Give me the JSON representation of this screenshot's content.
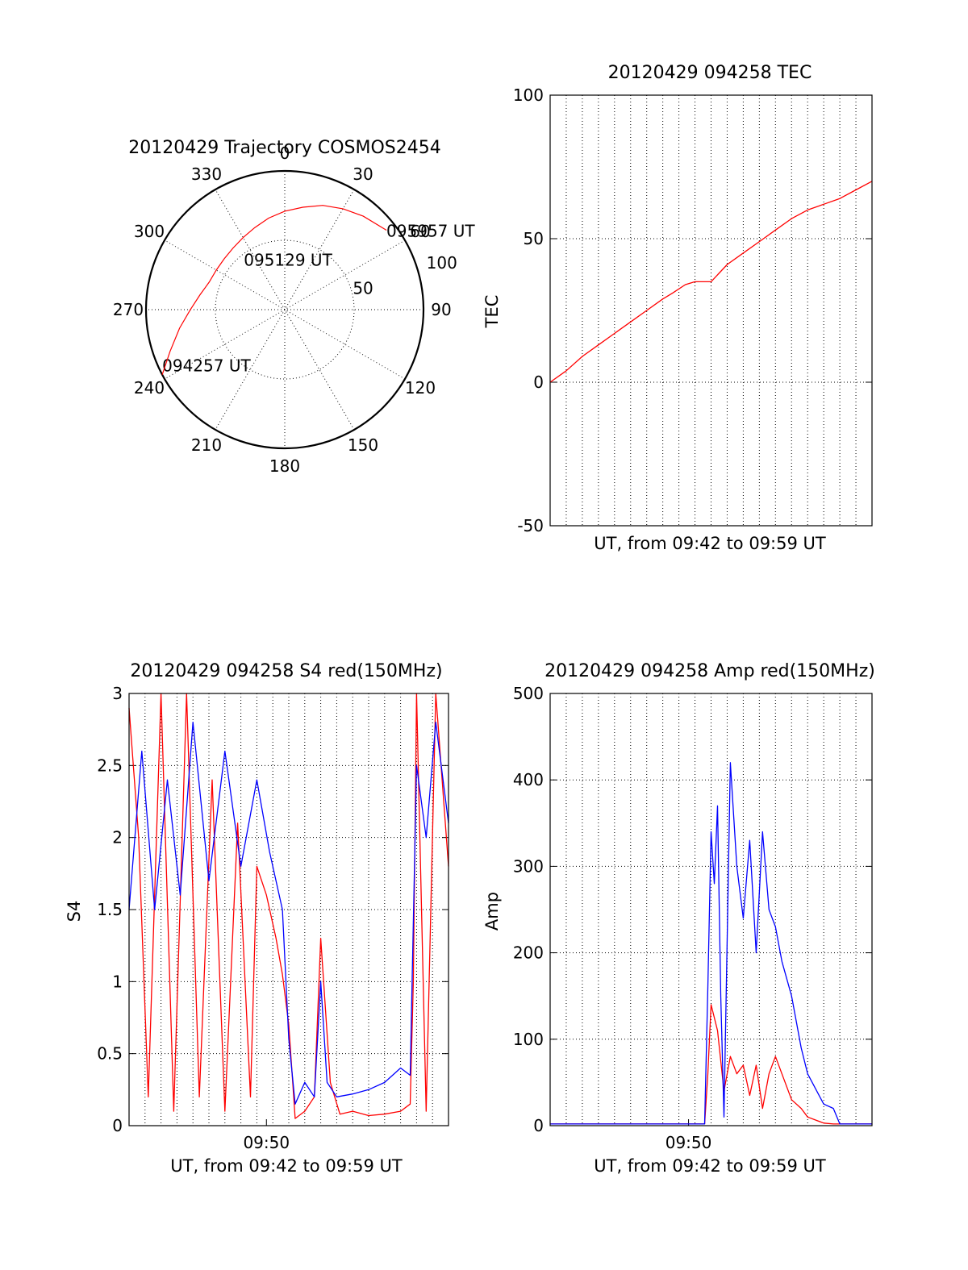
{
  "colors": {
    "red": "#ff0000",
    "blue": "#0000ff",
    "axis": "#000000"
  },
  "chart_data": [
    {
      "type": "scatter",
      "kind": "polar",
      "title": "20120429 Trajectory COSMOS2454",
      "azimuth_labels": [
        "0",
        "30",
        "60",
        "90",
        "120",
        "150",
        "180",
        "210",
        "240",
        "270",
        "300",
        "330"
      ],
      "radial_labels": [
        "50",
        "100"
      ],
      "rlim": [
        0,
        100
      ],
      "rings": [
        50,
        100
      ],
      "annotations": [
        {
          "text": "095957 UT",
          "az": 52,
          "zenith": 93
        },
        {
          "text": "095129 UT",
          "az": 0,
          "zenith": 5
        },
        {
          "text": "094257 UT",
          "az": 242,
          "zenith": 100
        }
      ],
      "series": [
        {
          "color": "#ff0000",
          "az": [
            242,
            250,
            260,
            270,
            280,
            290,
            300,
            310,
            320,
            330,
            340,
            350,
            0,
            10,
            20,
            30,
            40,
            52
          ],
          "zenith": [
            100,
            88,
            77,
            68,
            62,
            58,
            57,
            57,
            58,
            60,
            63,
            67,
            71,
            75,
            80,
            84,
            88,
            93
          ]
        }
      ]
    },
    {
      "type": "line",
      "title": "20120429 094258 TEC",
      "xlabel": "UT, from 09:42 to 09:59 UT",
      "ylabel": "TEC",
      "ylim": [
        -50,
        100
      ],
      "yticks": [
        "-50",
        "0",
        "50",
        "100"
      ],
      "xlim": [
        0,
        1
      ],
      "x_gridlines": 20,
      "grid": true,
      "series": [
        {
          "color": "#ff0000",
          "x": [
            0,
            0.05,
            0.1,
            0.15,
            0.2,
            0.25,
            0.3,
            0.35,
            0.38,
            0.42,
            0.45,
            0.5,
            0.55,
            0.6,
            0.65,
            0.7,
            0.75,
            0.8,
            0.85,
            0.9,
            0.95,
            1.0
          ],
          "y": [
            0,
            4,
            9,
            13,
            17,
            21,
            25,
            29,
            31,
            34,
            35,
            35,
            41,
            45,
            49,
            53,
            57,
            60,
            62,
            64,
            67,
            70
          ]
        }
      ]
    },
    {
      "type": "line",
      "title": "20120429 094258 S4 red(150MHz)",
      "xlabel": "UT, from 09:42 to 09:59 UT",
      "ylabel": "S4",
      "ylim": [
        0,
        3
      ],
      "yticks": [
        "0",
        "0.5",
        "1",
        "1.5",
        "2",
        "2.5",
        "3"
      ],
      "xlim": [
        0,
        1
      ],
      "xticks": [
        {
          "value": 0.43,
          "label": "09:50"
        }
      ],
      "x_gridlines": 20,
      "grid": true,
      "series": [
        {
          "color": "#ff0000",
          "x": [
            0,
            0.03,
            0.06,
            0.1,
            0.14,
            0.18,
            0.22,
            0.26,
            0.3,
            0.34,
            0.38,
            0.4,
            0.43,
            0.46,
            0.48,
            0.5,
            0.52,
            0.55,
            0.58,
            0.6,
            0.63,
            0.66,
            0.7,
            0.75,
            0.8,
            0.85,
            0.88,
            0.89,
            0.9,
            0.93,
            0.96,
            1.0
          ],
          "y": [
            2.9,
            2.0,
            0.2,
            3.0,
            0.1,
            3.0,
            0.2,
            2.4,
            0.1,
            2.1,
            0.2,
            1.8,
            1.6,
            1.3,
            1.05,
            0.7,
            0.05,
            0.1,
            0.2,
            1.3,
            0.3,
            0.08,
            0.1,
            0.07,
            0.08,
            0.1,
            0.15,
            1.0,
            3.0,
            0.1,
            3.0,
            1.8
          ]
        },
        {
          "color": "#0000ff",
          "x": [
            0,
            0.04,
            0.08,
            0.12,
            0.16,
            0.2,
            0.25,
            0.3,
            0.35,
            0.4,
            0.44,
            0.48,
            0.5,
            0.52,
            0.55,
            0.58,
            0.6,
            0.62,
            0.65,
            0.7,
            0.75,
            0.8,
            0.85,
            0.88,
            0.9,
            0.93,
            0.96,
            1.0
          ],
          "y": [
            1.5,
            2.6,
            1.5,
            2.4,
            1.6,
            2.8,
            1.7,
            2.6,
            1.8,
            2.4,
            1.9,
            1.5,
            0.6,
            0.15,
            0.3,
            0.2,
            1.0,
            0.3,
            0.2,
            0.22,
            0.25,
            0.3,
            0.4,
            0.35,
            2.5,
            2.0,
            2.8,
            2.1
          ]
        }
      ]
    },
    {
      "type": "line",
      "title": "20120429 094258 Amp red(150MHz)",
      "xlabel": "UT, from 09:42 to 09:59 UT",
      "ylabel": "Amp",
      "ylim": [
        0,
        500
      ],
      "yticks": [
        "0",
        "100",
        "200",
        "300",
        "400",
        "500"
      ],
      "xlim": [
        0,
        1
      ],
      "xticks": [
        {
          "value": 0.43,
          "label": "09:50"
        }
      ],
      "x_gridlines": 20,
      "grid": true,
      "series": [
        {
          "color": "#ff0000",
          "x": [
            0,
            0.48,
            0.49,
            0.5,
            0.52,
            0.54,
            0.56,
            0.58,
            0.6,
            0.62,
            0.64,
            0.66,
            0.68,
            0.7,
            0.72,
            0.75,
            0.78,
            0.8,
            0.85,
            0.88,
            0.9,
            1.0
          ],
          "y": [
            2,
            2,
            60,
            140,
            110,
            40,
            80,
            60,
            70,
            35,
            70,
            20,
            60,
            80,
            60,
            30,
            20,
            10,
            3,
            2,
            2,
            2
          ]
        },
        {
          "color": "#0000ff",
          "x": [
            0,
            0.48,
            0.49,
            0.5,
            0.51,
            0.52,
            0.53,
            0.54,
            0.56,
            0.58,
            0.6,
            0.62,
            0.64,
            0.66,
            0.68,
            0.7,
            0.72,
            0.75,
            0.78,
            0.8,
            0.85,
            0.88,
            0.9,
            1.0
          ],
          "y": [
            2,
            2,
            160,
            340,
            280,
            370,
            150,
            10,
            420,
            300,
            240,
            330,
            200,
            340,
            250,
            230,
            190,
            150,
            90,
            60,
            25,
            20,
            2,
            2
          ]
        }
      ]
    }
  ]
}
